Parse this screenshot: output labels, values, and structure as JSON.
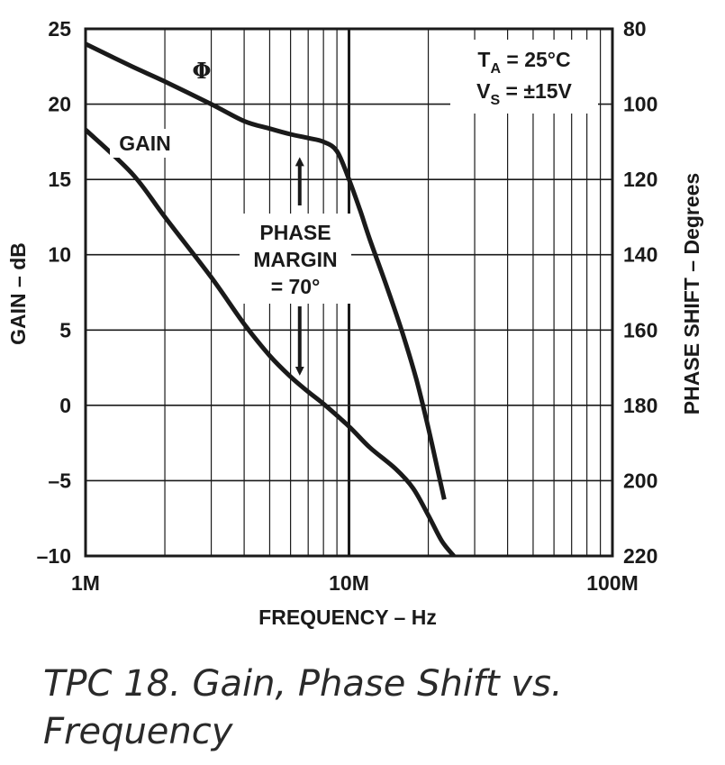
{
  "caption": "TPC 18.  Gain, Phase Shift vs. Frequency",
  "chart_data": {
    "type": "line",
    "title": "",
    "xlabel": "FREQUENCY – Hz",
    "ylabel": "GAIN – dB",
    "y2label": "PHASE SHIFT – Degrees",
    "xscale": "log",
    "xlim": [
      1000000,
      100000000
    ],
    "ylim": [
      -10,
      25
    ],
    "y2lim": [
      80,
      220
    ],
    "y2_inverted": true,
    "grid": true,
    "x_tick_labels": [
      {
        "value": 1000000,
        "label": "1M"
      },
      {
        "value": 10000000,
        "label": "10M"
      },
      {
        "value": 100000000,
        "label": "100M"
      }
    ],
    "y_tick_labels": [
      "25",
      "20",
      "15",
      "10",
      "5",
      "0",
      "–5",
      "–10"
    ],
    "y2_tick_labels": [
      "80",
      "100",
      "120",
      "140",
      "160",
      "180",
      "200",
      "220"
    ],
    "series": [
      {
        "name": "GAIN",
        "axis": "left",
        "units": "dB",
        "x": [
          1000000,
          1500000,
          2000000,
          3000000,
          4000000,
          5000000,
          6000000,
          7000000,
          8000000,
          10000000,
          12000000,
          15000000,
          17500000,
          20000000,
          22500000,
          25000000
        ],
        "y": [
          18.3,
          15.4,
          12.5,
          8.5,
          5.4,
          3.3,
          1.9,
          0.9,
          0.1,
          -1.4,
          -2.8,
          -4.2,
          -5.5,
          -7.3,
          -9.0,
          -10.0
        ]
      },
      {
        "name": "Φ",
        "axis": "right",
        "units": "Degrees",
        "x": [
          1000000,
          1500000,
          2000000,
          3000000,
          4000000,
          5000000,
          6000000,
          7000000,
          8000000,
          9000000,
          10000000,
          11000000,
          12000000,
          14000000,
          16000000,
          18000000,
          20000000,
          22000000,
          23000000
        ],
        "y": [
          84,
          90,
          94,
          100,
          104.5,
          106.5,
          108,
          109,
          110,
          112.5,
          120,
          128,
          136,
          149,
          161,
          173,
          186,
          199,
          205
        ]
      }
    ],
    "annotations": [
      {
        "text": "Φ",
        "target_series": "Φ"
      },
      {
        "text": "GAIN",
        "target_series": "GAIN"
      },
      {
        "lines": [
          "PHASE",
          "MARGIN",
          "= 70°"
        ],
        "type": "double-arrow",
        "at_x": 6500000,
        "from_phase": 110,
        "to_phase": 180
      }
    ],
    "conditions": [
      {
        "base": "T",
        "sub": "A",
        "rest": " = 25°C"
      },
      {
        "base": "V",
        "sub": "S",
        "rest": " = ±15V"
      }
    ]
  }
}
